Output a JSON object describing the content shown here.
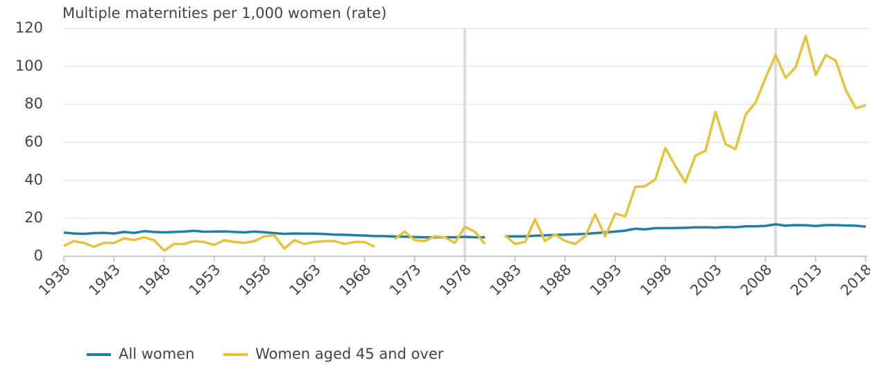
{
  "chart_data": {
    "type": "line",
    "title": "Multiple maternities per 1,000 women (rate)",
    "x": [
      1938,
      1939,
      1940,
      1941,
      1942,
      1943,
      1944,
      1945,
      1946,
      1947,
      1948,
      1949,
      1950,
      1951,
      1952,
      1953,
      1954,
      1955,
      1956,
      1957,
      1958,
      1959,
      1960,
      1961,
      1962,
      1963,
      1964,
      1965,
      1966,
      1967,
      1968,
      1969,
      1970,
      1971,
      1972,
      1973,
      1974,
      1975,
      1976,
      1977,
      1978,
      1979,
      1980,
      1981,
      1982,
      1983,
      1984,
      1985,
      1986,
      1987,
      1988,
      1989,
      1990,
      1991,
      1992,
      1993,
      1994,
      1995,
      1996,
      1997,
      1998,
      1999,
      2000,
      2001,
      2002,
      2003,
      2004,
      2005,
      2006,
      2007,
      2008,
      2009,
      2010,
      2011,
      2012,
      2013,
      2014,
      2015,
      2016,
      2017,
      2018
    ],
    "series": [
      {
        "name": "All women",
        "color": "#1f7fa6",
        "values": [
          12.5,
          12,
          11.8,
          12.2,
          12.3,
          12,
          12.8,
          12.3,
          13.2,
          12.8,
          12.6,
          12.8,
          13,
          13.4,
          12.9,
          13,
          13.1,
          12.8,
          12.6,
          13,
          12.7,
          12.2,
          11.8,
          12,
          11.9,
          11.9,
          11.7,
          11.4,
          11.3,
          11.1,
          10.9,
          10.6,
          10.6,
          10.4,
          10.3,
          10.1,
          10,
          10,
          10,
          10,
          10.2,
          10,
          10,
          null,
          10.5,
          10.5,
          10.5,
          10.8,
          11,
          11.2,
          11.4,
          11.6,
          11.8,
          12.2,
          12.6,
          13,
          13.5,
          14.5,
          14.2,
          14.8,
          14.8,
          14.9,
          15,
          15.2,
          15.3,
          15.1,
          15.4,
          15.3,
          15.8,
          15.8,
          16,
          16.8,
          16.1,
          16.4,
          16.3,
          15.9,
          16.4,
          16.4,
          16.2,
          16.1,
          15.6
        ]
      },
      {
        "name": "Women aged 45 and over",
        "color": "#e6c239",
        "values": [
          5.5,
          8,
          7,
          5,
          7,
          7,
          9.5,
          8.5,
          10,
          8.5,
          3,
          6.5,
          6.5,
          8,
          7.5,
          6,
          8.5,
          7.5,
          7,
          8,
          10.5,
          11,
          4,
          8.5,
          6.5,
          7.5,
          8,
          8,
          6.5,
          7.5,
          7.5,
          5,
          null,
          9,
          13,
          8.5,
          8,
          10.5,
          10,
          7,
          15.5,
          13,
          6.5,
          null,
          11,
          6.5,
          7.5,
          19.5,
          8,
          11.5,
          8,
          6.5,
          10.5,
          22,
          10.5,
          22.5,
          21,
          36.5,
          37,
          40.5,
          57,
          47.5,
          39,
          53,
          55.5,
          76,
          59,
          56.5,
          74.5,
          81,
          94,
          106,
          94,
          99.5,
          116,
          95.5,
          106,
          103,
          87.5,
          78,
          79.5
        ]
      }
    ],
    "xlim": [
      1938,
      2018
    ],
    "xticks": [
      1938,
      1943,
      1948,
      1953,
      1958,
      1963,
      1968,
      1973,
      1978,
      1983,
      1988,
      1993,
      1998,
      2003,
      2008,
      2013,
      2018
    ],
    "ylim": [
      0,
      120
    ],
    "yticks": [
      0,
      20,
      40,
      60,
      80,
      100,
      120
    ],
    "grid": true,
    "highlight_x": [
      1978,
      2009
    ],
    "legend": "bottom"
  }
}
